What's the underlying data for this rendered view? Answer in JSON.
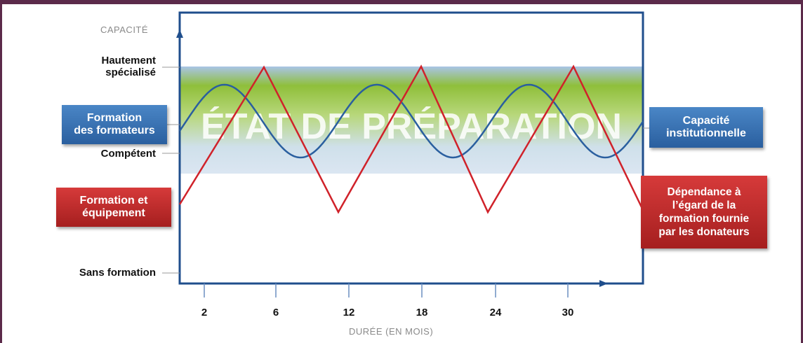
{
  "axes": {
    "y_caption": "CAPACITÉ",
    "x_caption": "DURÉE (EN MOIS)",
    "y_levels": {
      "high_line1": "Hautement",
      "high_line2": "spécialisé",
      "competent": "Compétent",
      "untrained": "Sans formation"
    },
    "x_ticks": [
      "2",
      "6",
      "12",
      "18",
      "24",
      "30"
    ]
  },
  "band": {
    "label": "ÉTAT DE PRÉPARATION"
  },
  "boxes": {
    "trainers_line1": "Formation",
    "trainers_line2": "des formateurs",
    "training_line1": "Formation et",
    "training_line2": "équipement",
    "institutional_line1": "Capacité",
    "institutional_line2": "institutionnelle",
    "dependence_line1": "Dépendance à",
    "dependence_line2": "l’égard de la",
    "dependence_line3": "formation fournie",
    "dependence_line4": "par les donateurs"
  },
  "colors": {
    "frame": "#5b2a4a",
    "axis": "#1f4e8c",
    "blue_curve": "#2a5f9f",
    "red_curve": "#d0222a",
    "band_top": "#9bbbe0",
    "band_mid": "#8fbf3a"
  }
}
